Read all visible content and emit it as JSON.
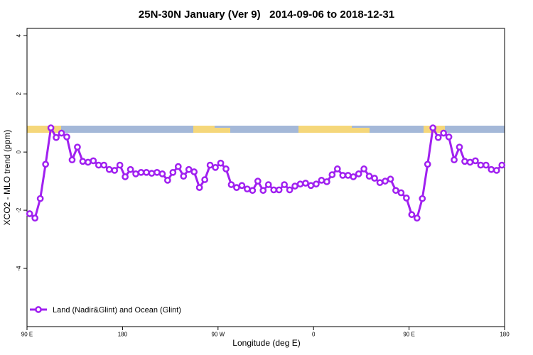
{
  "chart_data": {
    "type": "line",
    "title": "25N-30N January (Ver 9)   2014-09-06 to 2018-12-31",
    "xlabel": "Longitude (deg E)",
    "ylabel": "XCO2 - MLO trend (ppm)",
    "xlim": [
      90,
      540
    ],
    "ylim": [
      -6,
      4.25
    ],
    "xticks": [
      {
        "value": 90,
        "label": "90 E"
      },
      180,
      {
        "value": 270,
        "label": "90 W"
      },
      {
        "value": 360,
        "label": "0"
      },
      {
        "value": 450,
        "label": "90 E"
      },
      {
        "value": 540,
        "label": "180"
      }
    ],
    "yticks": [
      -4,
      -2,
      0,
      2,
      4
    ],
    "legend": "bottom-left",
    "x": [
      92.5,
      97.5,
      102.5,
      107.5,
      112.5,
      117.5,
      122.5,
      127.5,
      132.5,
      137.5,
      142.5,
      147.5,
      152.5,
      157.5,
      162.5,
      167.5,
      172.5,
      177.5,
      182.5,
      187.5,
      192.5,
      197.5,
      202.5,
      207.5,
      212.5,
      217.5,
      222.5,
      227.5,
      232.5,
      237.5,
      242.5,
      247.5,
      252.5,
      257.5,
      262.5,
      267.5,
      272.5,
      277.5,
      282.5,
      287.5,
      292.5,
      297.5,
      302.5,
      307.5,
      312.5,
      317.5,
      322.5,
      327.5,
      332.5,
      337.5,
      342.5,
      347.5,
      352.5,
      357.5,
      362.5,
      367.5,
      372.5,
      377.5,
      382.5,
      387.5,
      392.5,
      397.5,
      402.5,
      407.5,
      412.5,
      417.5,
      422.5,
      427.5,
      432.5,
      437.5,
      442.5,
      447.5,
      452.5,
      457.5,
      462.5,
      467.5,
      472.5,
      477.5,
      482.5,
      487.5,
      492.5,
      497.5,
      502.5,
      507.5,
      512.5,
      517.5,
      522.5,
      527.5,
      532.5,
      537.5
    ],
    "series": [
      {
        "name": "Land (Nadir&Glint) and Ocean (Glint)",
        "color": "#a020f0",
        "values": [
          -2.12,
          -2.27,
          -1.6,
          -0.42,
          0.83,
          0.5,
          0.65,
          0.52,
          -0.27,
          0.17,
          -0.32,
          -0.35,
          -0.3,
          -0.45,
          -0.45,
          -0.6,
          -0.63,
          -0.45,
          -0.85,
          -0.6,
          -0.75,
          -0.7,
          -0.7,
          -0.73,
          -0.7,
          -0.75,
          -0.97,
          -0.7,
          -0.5,
          -0.83,
          -0.6,
          -0.68,
          -1.22,
          -0.95,
          -0.45,
          -0.53,
          -0.38,
          -0.58,
          -1.12,
          -1.22,
          -1.15,
          -1.27,
          -1.32,
          -1.0,
          -1.32,
          -1.12,
          -1.3,
          -1.3,
          -1.12,
          -1.3,
          -1.17,
          -1.1,
          -1.07,
          -1.15,
          -1.1,
          -0.97,
          -1.02,
          -0.78,
          -0.58,
          -0.8,
          -0.8,
          -0.85,
          -0.75,
          -0.58,
          -0.83,
          -0.9,
          -1.05,
          -1.0,
          -0.93,
          -1.32,
          -1.4,
          -1.58,
          -2.15,
          -2.27,
          -1.6,
          -0.42,
          0.83,
          0.5,
          0.65,
          0.52,
          -0.27,
          0.17,
          -0.32,
          -0.35,
          -0.3,
          -0.45,
          -0.45,
          -0.6,
          -0.63,
          -0.45
        ]
      }
    ]
  }
}
